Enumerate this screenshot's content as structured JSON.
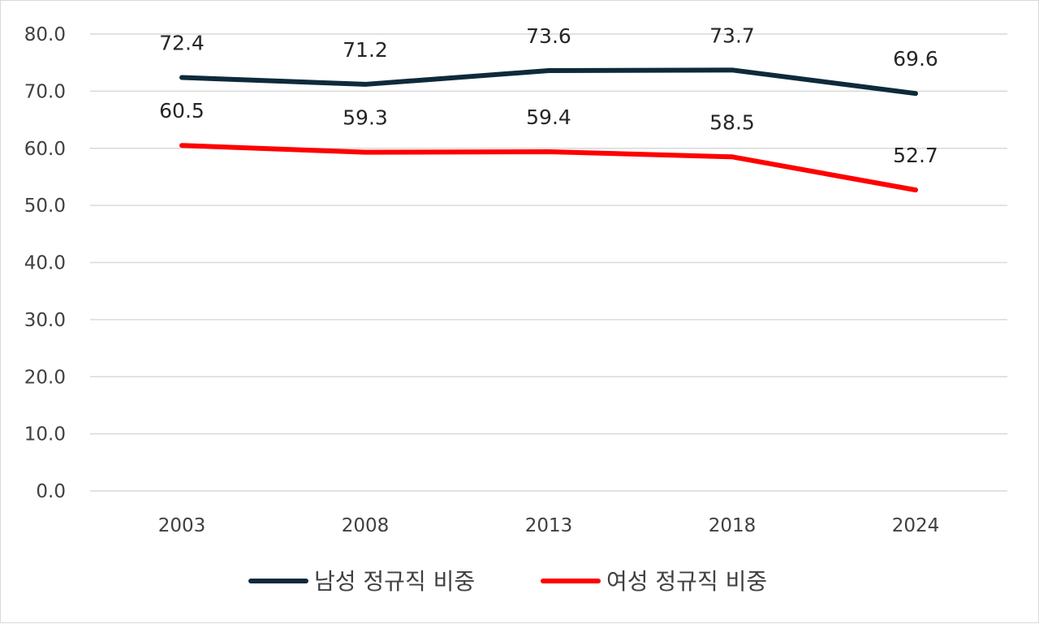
{
  "chart_data": {
    "type": "line",
    "categories": [
      "2003",
      "2008",
      "2013",
      "2018",
      "2024"
    ],
    "series": [
      {
        "name": "남성 정규직 비중",
        "values": [
          72.4,
          71.2,
          73.6,
          73.7,
          69.6
        ],
        "color": "#0e2a3b"
      },
      {
        "name": "여성 정규직 비중",
        "values": [
          60.5,
          59.3,
          59.4,
          58.5,
          52.7
        ],
        "color": "#ff0000"
      }
    ],
    "ylim": [
      0,
      80
    ],
    "yticks": [
      "0.0",
      "10.0",
      "20.0",
      "30.0",
      "40.0",
      "50.0",
      "60.0",
      "70.0",
      "80.0"
    ],
    "grid": true,
    "legend_position": "bottom",
    "data_labels": true
  }
}
